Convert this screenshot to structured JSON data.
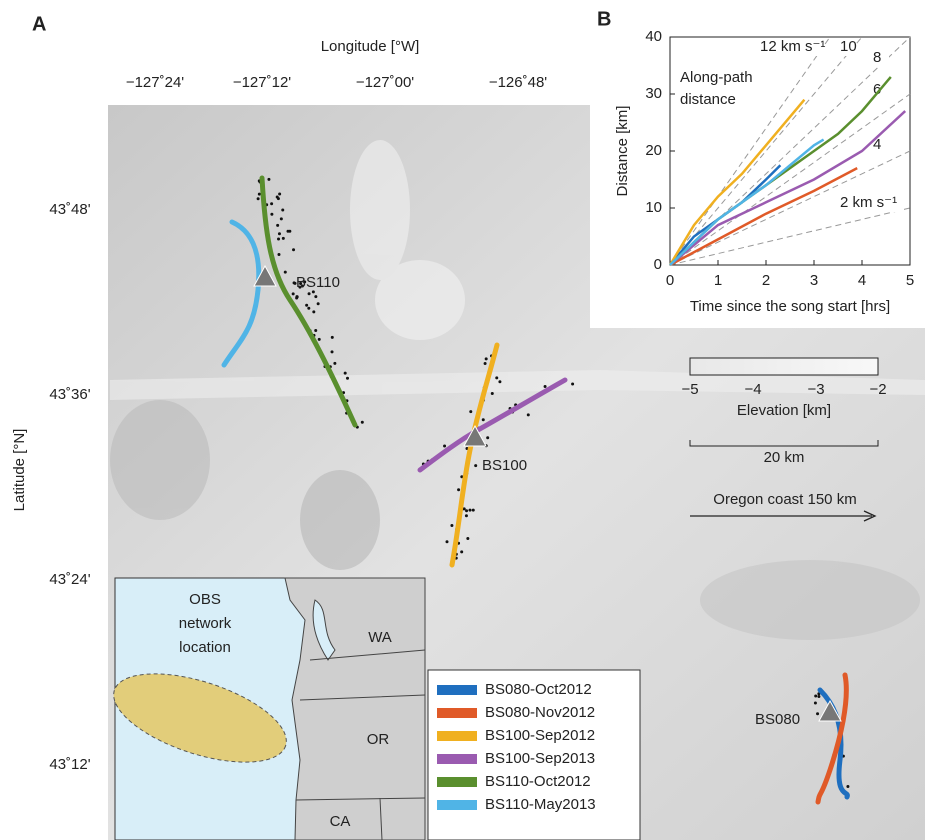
{
  "panel_a": {
    "label": "A",
    "x_axis_title": "Longitude [°W]",
    "x_ticks": [
      "−127˚24'",
      "−127˚12'",
      "−127˚00'",
      "−126˚48'"
    ],
    "y_axis_title": "Latitude [°N]",
    "y_ticks": [
      "43˚48'",
      "43˚36'",
      "43˚24'",
      "43˚12'"
    ],
    "stations": [
      "BS110",
      "BS100",
      "BS080"
    ],
    "elevation_scale": {
      "ticks": [
        "−5",
        "−4",
        "−3",
        "−2"
      ],
      "label": "Elevation [km]"
    },
    "scale_bar": "20 km",
    "coast_arrow": "Oregon coast 150 km",
    "inset": {
      "title_lines": [
        "OBS",
        "network",
        "location"
      ],
      "states": [
        "WA",
        "OR",
        "CA"
      ]
    }
  },
  "chart_data": {
    "type": "line",
    "label": "B",
    "annotation": [
      "Along-path",
      "distance"
    ],
    "x_label": "Time since the song start [hrs]",
    "y_label": "Distance [km]",
    "xlim": [
      0,
      5
    ],
    "xticks": [
      0,
      1,
      2,
      3,
      4,
      5
    ],
    "ylim": [
      0,
      40
    ],
    "yticks": [
      0,
      10,
      20,
      30,
      40
    ],
    "reference_lines": [
      {
        "value": 2,
        "label": "2 km s⁻¹"
      },
      4,
      6,
      8,
      10,
      {
        "value": 12,
        "label": "12 km s⁻¹"
      }
    ],
    "series": [
      {
        "name": "BS080-Oct2012",
        "color": "#1f6fbf",
        "x": [
          0,
          0.5,
          1,
          1.5,
          2,
          2.3
        ],
        "values": [
          0,
          5,
          8,
          11,
          15,
          17.5
        ]
      },
      {
        "name": "BS080-Nov2012",
        "color": "#e05a28",
        "x": [
          0,
          1,
          2,
          3,
          3.9
        ],
        "values": [
          0,
          4.5,
          9,
          13,
          17
        ]
      },
      {
        "name": "BS100-Sep2012",
        "color": "#f0b020",
        "x": [
          0,
          0.5,
          1,
          1.5,
          2,
          2.5,
          2.8
        ],
        "values": [
          0,
          7,
          12,
          16,
          21,
          26,
          29
        ]
      },
      {
        "name": "BS100-Sep2013",
        "color": "#9a5bb0",
        "x": [
          0,
          1,
          2,
          3,
          4,
          4.9
        ],
        "values": [
          0,
          7,
          11,
          15,
          20,
          27
        ]
      },
      {
        "name": "BS110-Oct2012",
        "color": "#5a8f2e",
        "x": [
          0,
          1,
          2,
          3,
          3.5,
          4,
          4.6
        ],
        "values": [
          0,
          8,
          14,
          20,
          23,
          27,
          33
        ]
      },
      {
        "name": "BS110-May2013",
        "color": "#50b4e6",
        "x": [
          0,
          1,
          2,
          3,
          3.2
        ],
        "values": [
          0,
          8,
          14,
          21,
          22
        ]
      }
    ]
  }
}
